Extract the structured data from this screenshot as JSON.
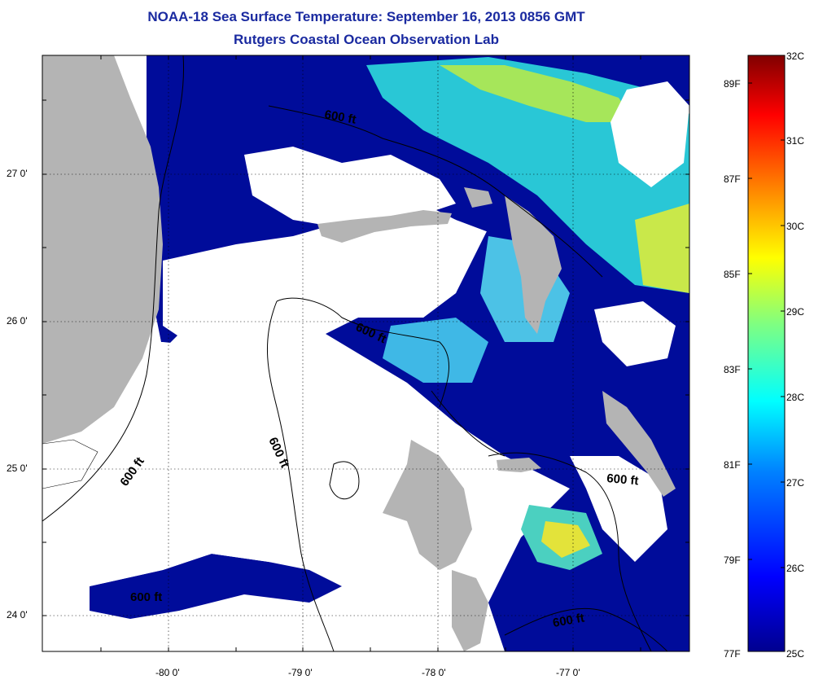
{
  "title": "NOAA-18 Sea Surface Temperature:  September 16, 2013 0856 GMT",
  "subtitle": "Rutgers Coastal Ocean Observation Lab",
  "axes": {
    "x_ticks": [
      "-80 0'",
      "-79 0'",
      "-78 0'",
      "-77 0'"
    ],
    "y_ticks": [
      "27 0'",
      "26 0'",
      "25 0'",
      "24 0'"
    ]
  },
  "contour_labels": [
    "600 ft",
    "600 ft",
    "600 ft",
    "600 ft",
    "600 ft",
    "600 ft"
  ],
  "colorbar": {
    "celsius": [
      "32C",
      "31C",
      "30C",
      "29C",
      "28C",
      "27C",
      "26C",
      "25C"
    ],
    "fahrenheit": [
      "89F",
      "87F",
      "85F",
      "83F",
      "81F",
      "79F",
      "77F"
    ],
    "colors": [
      "#00008f",
      "#0000ff",
      "#0080ff",
      "#00ffff",
      "#80ff80",
      "#ffff00",
      "#ff8000",
      "#ff0000",
      "#800000"
    ]
  },
  "colors": {
    "title": "#1a2aa0",
    "land": "#b4b4b4",
    "ocean_deep": "#000c9a",
    "cloud": "#ffffff"
  }
}
